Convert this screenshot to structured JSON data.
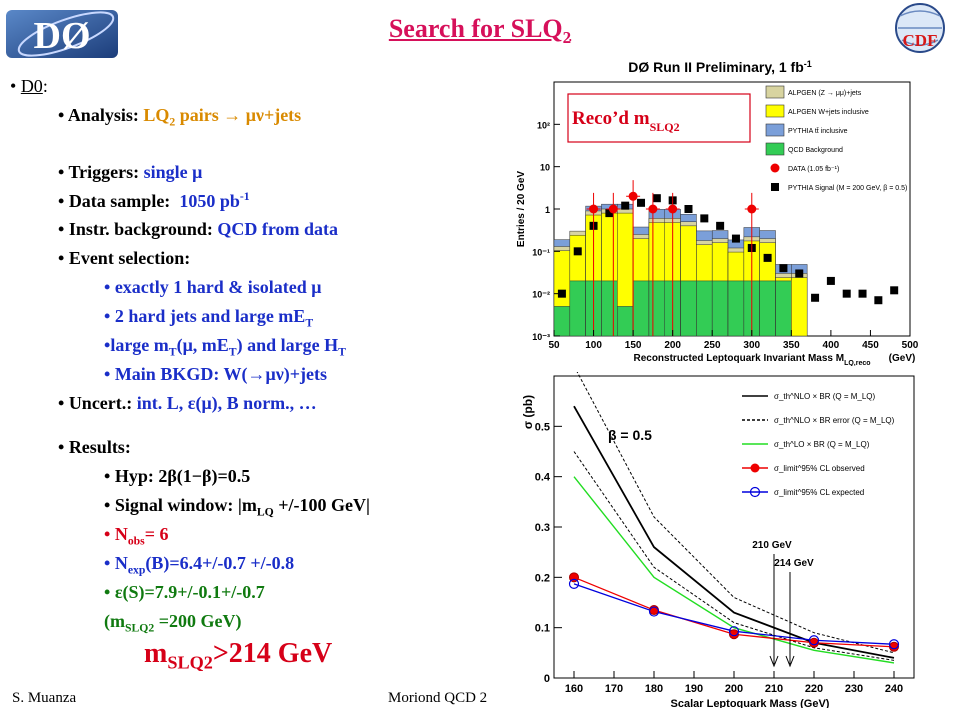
{
  "header": {
    "title": "Search for SLQ",
    "title_sub": "2",
    "logo_d0_text": "DØ",
    "logo_cdf_text": "CDF"
  },
  "left": {
    "d0": "D0",
    "analysis_label": "Analysis: ",
    "analysis_value": "LQ",
    "analysis_value_sub": "2",
    "analysis_value_rest": " pairs → μν+jets",
    "triggers_label": "Triggers: ",
    "triggers_value": "single μ",
    "sample_label": "Data sample: ",
    "sample_value": "1050 pb",
    "sample_value_sup": "-1",
    "instr_label": "Instr. background: ",
    "instr_value": "QCD from data",
    "event_label": "Event selection:",
    "sel1": "exactly 1 hard & isolated μ",
    "sel2": "2 hard jets and large mE",
    "sel2_sub": "T",
    "sel3a": "large m",
    "sel3a_sub": "T",
    "sel3b": "(μ, mE",
    "sel3b_sub": "T",
    "sel3c": ") and large H",
    "sel3c_sub": "T",
    "sel4": "Main BKGD: W(→μν)+jets",
    "uncert_label": "Uncert.: ",
    "uncert_value": "int. L, ε(μ), B norm., …",
    "results_label": "Results:",
    "hyp": "Hyp: 2β(1−β)=0.5",
    "window_a": "Signal window: |m",
    "window_sub": "LQ",
    "window_b": " +/-100 GeV|",
    "nobs_a": "N",
    "nobs_sub": "obs",
    "nobs_b": "= 6",
    "nexp_a": "N",
    "nexp_sub": "exp",
    "nexp_b": "(B)=6.4+/-0.7 +/-0.8",
    "eff": "ε(S)=7.9+/-0.1+/-0.7",
    "mslq_a": "(m",
    "mslq_sub": "SLQ2",
    "mslq_b": " =200 GeV)",
    "limit_a": "m",
    "limit_sub": "SLQ2",
    "limit_b": ">214 GeV"
  },
  "footer": {
    "author": "S. Muanza",
    "conf": "Moriond QCD 2"
  },
  "chart_data": [
    {
      "type": "bar",
      "title": "DØ Run II Preliminary, 1 fb",
      "title_sup": "-1",
      "annotation": "Reco’d m",
      "annotation_sub": "SLQ2",
      "xlabel": "Reconstructed Leptoquark Invariant Mass M",
      "xlabel_sub": "LQ,reco",
      "xlabel_unit": "(GeV)",
      "ylabel": "Entries / 20 GeV",
      "y_scale": "log",
      "ylim": [
        0.001,
        1000
      ],
      "xlim": [
        50,
        500
      ],
      "x_ticks": [
        50,
        100,
        150,
        200,
        250,
        300,
        350,
        400,
        450,
        500
      ],
      "y_ticks": [
        "10⁻³",
        "10⁻²",
        "10⁻¹",
        "1",
        "10",
        "10²"
      ],
      "bin_edges": [
        50,
        70,
        90,
        110,
        130,
        150,
        170,
        190,
        210,
        230,
        250,
        270,
        290,
        310,
        330,
        350,
        370,
        390,
        410,
        430,
        450,
        470,
        490
      ],
      "legend": [
        {
          "label": "ALPGEN (Z → μμ)+jets",
          "color": "#d8d4a0"
        },
        {
          "label": "ALPGEN W+jets inclusive",
          "color": "#ffff00"
        },
        {
          "label": "PYTHIA tt̄ inclusive",
          "color": "#7b9fd9"
        },
        {
          "label": "QCD Background",
          "color": "#33cc55"
        },
        {
          "label": "DATA (1.05 fb⁻¹)",
          "color": "#ee0000"
        },
        {
          "label": "PYTHIA Signal (M = 200 GeV, β = 0.5)",
          "color": "#000000"
        }
      ],
      "series": [
        {
          "name": "ALPGEN (Z → μμ)+jets",
          "values": [
            0.13,
            0.3,
            0.9,
            1.0,
            1.0,
            0.25,
            0.6,
            0.6,
            0.5,
            0.18,
            0.2,
            0.12,
            0.22,
            0.2,
            0.03,
            0.03,
            0,
            0,
            0,
            0,
            0,
            0
          ]
        },
        {
          "name": "ALPGEN W+jets inclusive",
          "values": [
            0.03,
            0.1,
            0.4,
            0.4,
            0.6,
            0.2,
            0.25,
            0.5,
            0.2,
            0.12,
            0.1,
            0.08,
            0.1,
            0.1,
            0.02,
            0.01,
            0,
            0,
            0,
            0,
            0,
            0
          ]
        },
        {
          "name": "PYTHIA tt̄ inclusive",
          "values": [
            0.15,
            0.2,
            0.9,
            1.0,
            1.0,
            0.3,
            0.8,
            0.8,
            0.6,
            0.25,
            0.25,
            0.15,
            0.3,
            0.25,
            0.04,
            0.04,
            0,
            0,
            0,
            0,
            0,
            0
          ]
        },
        {
          "name": "QCD Background",
          "values": [
            0.005,
            0.02,
            0.02,
            0.02,
            0.005,
            0.02,
            0.02,
            0.02,
            0.02,
            0.02,
            0.02,
            0.02,
            0.02,
            0.02,
            0.02,
            0,
            0,
            0,
            0,
            0,
            0,
            0
          ]
        },
        {
          "name": "DATA (1.05 fb⁻¹)",
          "x": [
            100,
            125,
            150,
            175,
            200,
            225,
            250,
            275,
            300,
            325
          ],
          "values": [
            1,
            1,
            2,
            1,
            1,
            0,
            0,
            0,
            1,
            0
          ]
        },
        {
          "name": "PYTHIA Signal (M = 200 GeV, β = 0.5)",
          "x": [
            60,
            80,
            100,
            120,
            140,
            160,
            180,
            200,
            220,
            240,
            260,
            280,
            300,
            320,
            340,
            360,
            380,
            400,
            420,
            440,
            460,
            480
          ],
          "values": [
            0.01,
            0.1,
            0.4,
            0.8,
            1.2,
            1.4,
            1.8,
            1.6,
            1.0,
            0.6,
            0.4,
            0.2,
            0.12,
            0.07,
            0.04,
            0.03,
            0.008,
            0.02,
            0.01,
            0.01,
            0.007,
            0.012
          ]
        }
      ]
    },
    {
      "type": "line",
      "ylabel": "σ (pb)",
      "xlabel": "Scalar Leptoquark Mass (GeV)",
      "xlim": [
        155,
        245
      ],
      "ylim": [
        0,
        0.6
      ],
      "x_ticks": [
        160,
        170,
        180,
        190,
        200,
        210,
        220,
        230,
        240
      ],
      "y_ticks": [
        0,
        0.1,
        0.2,
        0.3,
        0.4,
        0.5
      ],
      "annotations": [
        "β = 0.5",
        "210 GeV",
        "214 GeV"
      ],
      "legend": [
        {
          "label": "σ_th^NLO × BR (Q = M_LQ)",
          "color": "#000000"
        },
        {
          "label": "σ_th^NLO × BR error (Q = M_LQ)",
          "color": "#000000"
        },
        {
          "label": "σ_th^LO × BR (Q = M_LQ)",
          "color": "#22dd22"
        },
        {
          "label": "σ_limit^95% CL observed",
          "color": "#ee0000"
        },
        {
          "label": "σ_limit^95% CL expected",
          "color": "#0000dd"
        }
      ],
      "series": [
        {
          "name": "σ_th^NLO × BR (Q = M_LQ)",
          "x": [
            160,
            180,
            200,
            220,
            240
          ],
          "values": [
            0.54,
            0.26,
            0.13,
            0.07,
            0.04
          ]
        },
        {
          "name": "σ_th^NLO × BR error upper",
          "x": [
            160,
            180,
            200,
            220,
            240
          ],
          "values": [
            0.62,
            0.32,
            0.16,
            0.09,
            0.05
          ]
        },
        {
          "name": "σ_th^NLO × BR error lower",
          "x": [
            160,
            180,
            200,
            220,
            240
          ],
          "values": [
            0.45,
            0.22,
            0.11,
            0.06,
            0.035
          ]
        },
        {
          "name": "σ_th^LO × BR (Q = M_LQ)",
          "x": [
            160,
            180,
            200,
            220,
            240
          ],
          "values": [
            0.4,
            0.2,
            0.1,
            0.055,
            0.03
          ]
        },
        {
          "name": "σ_limit^95% CL observed",
          "x": [
            160,
            180,
            200,
            220,
            240
          ],
          "values": [
            0.2,
            0.135,
            0.087,
            0.07,
            0.062
          ]
        },
        {
          "name": "σ_limit^95% CL expected",
          "x": [
            160,
            180,
            200,
            220,
            240
          ],
          "values": [
            0.187,
            0.132,
            0.093,
            0.075,
            0.067
          ]
        }
      ]
    }
  ]
}
